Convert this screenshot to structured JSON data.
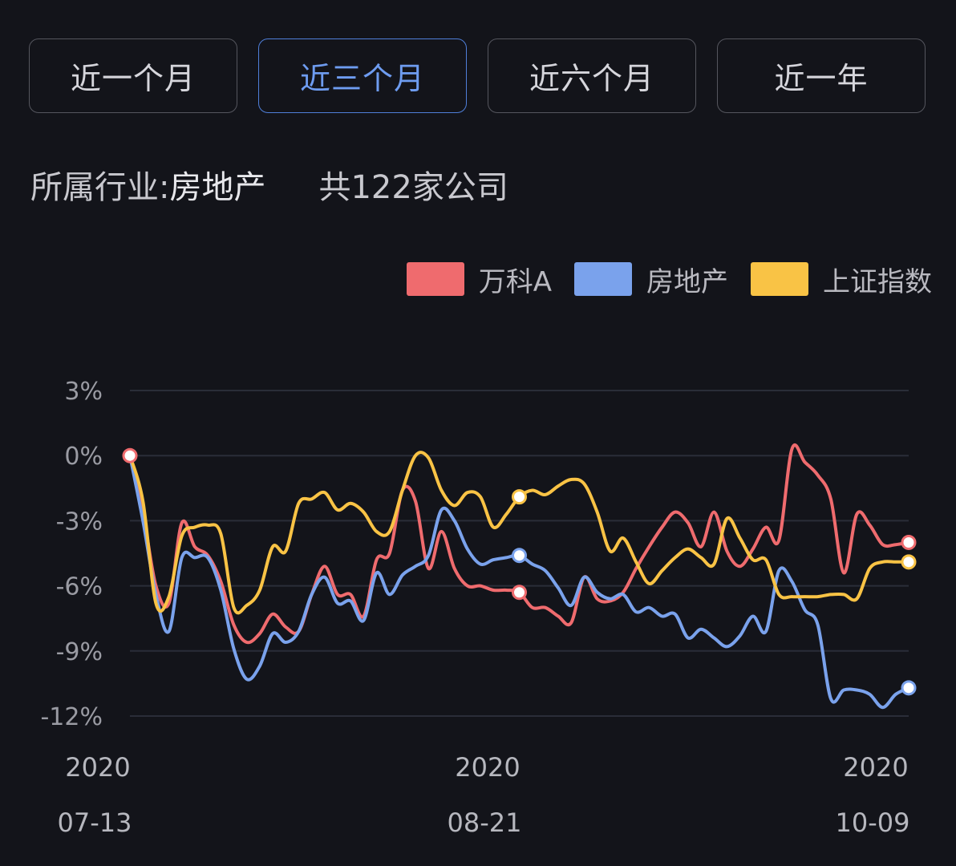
{
  "tabs": [
    {
      "label": "近一个月",
      "active": false
    },
    {
      "label": "近三个月",
      "active": true
    },
    {
      "label": "近六个月",
      "active": false
    },
    {
      "label": "近一年",
      "active": false
    }
  ],
  "industry": {
    "prefix": "所属行业:",
    "name": "房地产",
    "count": "共122家公司"
  },
  "chart_data": {
    "type": "line",
    "x_ticks": [
      {
        "year": "2020",
        "date": "07-13"
      },
      {
        "year": "2020",
        "date": "08-21"
      },
      {
        "year": "2020",
        "date": "10-09"
      }
    ],
    "ylim": [
      -12,
      3
    ],
    "yticks": [
      3,
      0,
      -3,
      -6,
      -9,
      -12
    ],
    "ytick_labels": [
      "3%",
      "0%",
      "-3%",
      "-6%",
      "-9%",
      "-12%"
    ],
    "grid": true,
    "legend_position": "top-right",
    "x_index_range": [
      0,
      60
    ],
    "highlight_index": 30,
    "series": [
      {
        "name": "万科A",
        "color": "#ef6b6e",
        "values": [
          0,
          -2.6,
          -6.0,
          -6.8,
          -3.1,
          -4.2,
          -4.6,
          -5.8,
          -7.8,
          -8.6,
          -8.2,
          -7.3,
          -7.9,
          -8.1,
          -6.4,
          -5.1,
          -6.4,
          -6.4,
          -7.4,
          -4.8,
          -4.5,
          -1.6,
          -2.1,
          -5.2,
          -3.5,
          -5.2,
          -6.0,
          -6.0,
          -6.2,
          -6.2,
          -6.3,
          -7.0,
          -7.0,
          -7.4,
          -7.7,
          -5.6,
          -6.6,
          -6.7,
          -6.3,
          -5.2,
          -4.2,
          -3.3,
          -2.6,
          -3.1,
          -4.2,
          -2.6,
          -4.4,
          -5.1,
          -4.3,
          -3.3,
          -3.9,
          0.3,
          -0.3,
          -0.9,
          -2.0,
          -5.4,
          -2.7,
          -3.2,
          -4.1,
          -4.1,
          -4.0
        ]
      },
      {
        "name": "房地产",
        "color": "#7aa2ec",
        "values": [
          0,
          -3.0,
          -6.4,
          -8.1,
          -4.7,
          -4.7,
          -4.7,
          -6.2,
          -8.9,
          -10.3,
          -9.7,
          -8.2,
          -8.6,
          -8.1,
          -6.4,
          -5.6,
          -6.8,
          -6.7,
          -7.6,
          -5.4,
          -6.4,
          -5.5,
          -5.1,
          -4.6,
          -2.5,
          -3.0,
          -4.3,
          -5.0,
          -4.8,
          -4.7,
          -4.6,
          -5.0,
          -5.3,
          -6.1,
          -6.9,
          -5.6,
          -6.3,
          -6.6,
          -6.4,
          -7.2,
          -7.0,
          -7.4,
          -7.3,
          -8.4,
          -8.0,
          -8.4,
          -8.8,
          -8.3,
          -7.4,
          -8.1,
          -5.3,
          -5.8,
          -7.1,
          -7.8,
          -11.2,
          -10.8,
          -10.8,
          -11.0,
          -11.6,
          -11.0,
          -10.7
        ]
      },
      {
        "name": "上证指数",
        "color": "#f9c345",
        "values": [
          0,
          -2.1,
          -6.8,
          -6.5,
          -3.7,
          -3.3,
          -3.2,
          -3.6,
          -7.0,
          -6.9,
          -6.2,
          -4.2,
          -4.4,
          -2.2,
          -2.0,
          -1.7,
          -2.5,
          -2.2,
          -2.6,
          -3.5,
          -3.5,
          -1.6,
          0.0,
          -0.1,
          -1.6,
          -2.3,
          -1.7,
          -1.9,
          -3.3,
          -2.7,
          -1.9,
          -1.6,
          -1.8,
          -1.4,
          -1.1,
          -1.3,
          -2.6,
          -4.4,
          -3.8,
          -4.9,
          -5.9,
          -5.3,
          -4.7,
          -4.3,
          -4.7,
          -5.0,
          -2.9,
          -3.8,
          -4.8,
          -4.8,
          -6.4,
          -6.5,
          -6.5,
          -6.5,
          -6.4,
          -6.4,
          -6.6,
          -5.2,
          -4.9,
          -4.9,
          -4.9
        ]
      }
    ]
  }
}
